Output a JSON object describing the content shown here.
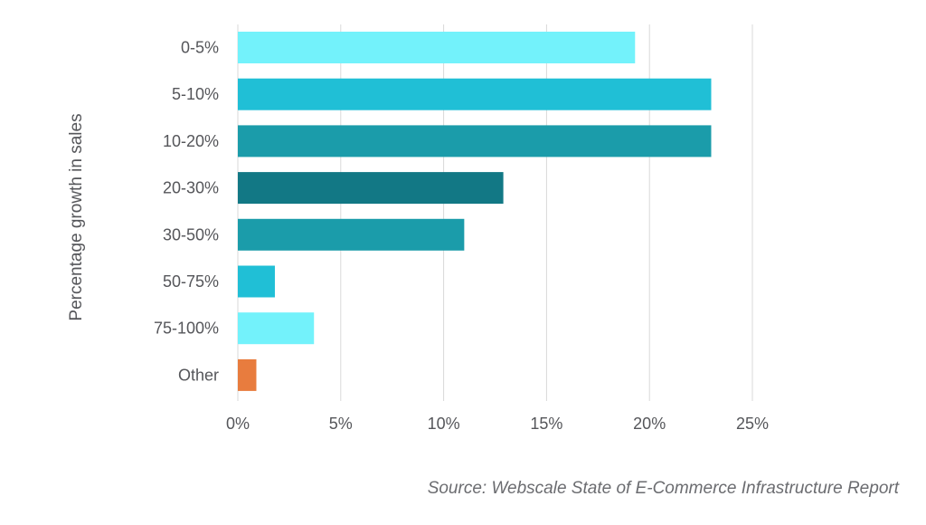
{
  "chart_data": {
    "type": "bar",
    "orientation": "horizontal",
    "categories": [
      "0-5%",
      "5-10%",
      "10-20%",
      "20-30%",
      "30-50%",
      "50-75%",
      "75-100%",
      "Other"
    ],
    "values": [
      19.3,
      23.0,
      23.0,
      12.9,
      11.0,
      1.8,
      3.7,
      0.9
    ],
    "colors": [
      "#73f2fb",
      "#20bfd6",
      "#1b9caa",
      "#127885",
      "#1b9caa",
      "#20bfd6",
      "#73f2fb",
      "#e87c3e"
    ],
    "xlim": [
      0,
      25
    ],
    "xticks": [
      "0%",
      "5%",
      "10%",
      "15%",
      "20%",
      "25%"
    ],
    "xlabel": "",
    "ylabel": "Percentage growth in sales",
    "grid": "vertical",
    "source": "Source: Webscale State of E-Commerce Infrastructure Report"
  },
  "colors": {
    "grid": "#d9d9d9",
    "axis_text": "#55565a",
    "source_text": "#6b6c70"
  }
}
